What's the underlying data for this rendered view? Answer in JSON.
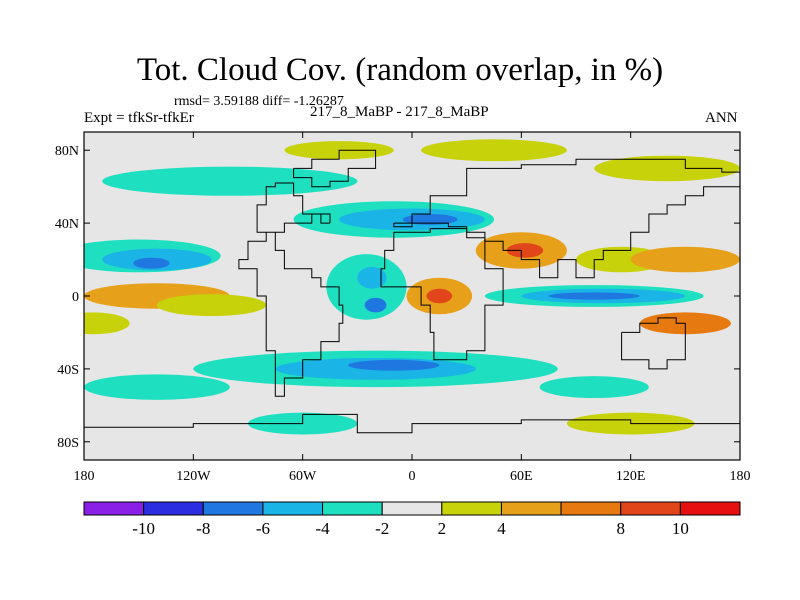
{
  "chart_data": {
    "type": "heatmap",
    "title": "Tot. Cloud Cov. (random overlap, in %)",
    "stats": {
      "label": "rmsd= 3.59188 diff= -1.26287"
    },
    "left_label": "Expt = tfkSr-tfkEr",
    "center_label": "217_8_MaBP - 217_8_MaBP",
    "right_label": "ANN",
    "x_axis": {
      "range": [
        -180,
        180
      ],
      "tick_values": [
        -180,
        -120,
        -60,
        0,
        60,
        120,
        180
      ],
      "tick_labels": [
        "180",
        "120W",
        "60W",
        "0",
        "60E",
        "120E",
        "180"
      ]
    },
    "y_axis": {
      "range": [
        -90,
        90
      ],
      "tick_values": [
        80,
        40,
        0,
        -40,
        -80
      ],
      "tick_labels": [
        "80N",
        "40N",
        "0",
        "40S",
        "80S"
      ]
    },
    "colorbar": {
      "levels": [
        -12,
        -10,
        -8,
        -6,
        -4,
        -2,
        2,
        4,
        6,
        8,
        10,
        12
      ],
      "labels": [
        {
          "value": -10,
          "text": "-10"
        },
        {
          "value": -8,
          "text": "-8"
        },
        {
          "value": -6,
          "text": "-6"
        },
        {
          "value": -4,
          "text": "-4"
        },
        {
          "value": -2,
          "text": "-2"
        },
        {
          "value": 2,
          "text": "2"
        },
        {
          "value": 4,
          "text": "4"
        },
        {
          "value": 8,
          "text": "8"
        },
        {
          "value": 10,
          "text": "10"
        }
      ],
      "colors": [
        "#8a1fe6",
        "#2a2de0",
        "#1f78e0",
        "#1ab4e6",
        "#1ee0c0",
        "#e6e6e6",
        "#c8d20a",
        "#e6a01a",
        "#e67a10",
        "#e0461a",
        "#e61010"
      ]
    },
    "features": [
      {
        "name": "nh-high-lat-teal-band",
        "lon": -100,
        "lat": 63,
        "rlon": 70,
        "rlat": 8,
        "value": -3
      },
      {
        "name": "arctic-yellow-1",
        "lon": -40,
        "lat": 80,
        "rlon": 30,
        "rlat": 5,
        "value": 3
      },
      {
        "name": "arctic-yellow-2",
        "lon": 45,
        "lat": 80,
        "rlon": 40,
        "rlat": 6,
        "value": 3
      },
      {
        "name": "arctic-yellow-3",
        "lon": 140,
        "lat": 70,
        "rlon": 40,
        "rlat": 7,
        "value": 3
      },
      {
        "name": "north-pacific-teal",
        "lon": -150,
        "lat": 22,
        "rlon": 45,
        "rlat": 9,
        "value": -3
      },
      {
        "name": "north-pacific-blue",
        "lon": -140,
        "lat": 20,
        "rlon": 30,
        "rlat": 6,
        "value": -5
      },
      {
        "name": "north-pacific-core",
        "lon": -143,
        "lat": 18,
        "rlon": 10,
        "rlat": 3,
        "value": -7
      },
      {
        "name": "north-atlantic-teal",
        "lon": -10,
        "lat": 42,
        "rlon": 55,
        "rlat": 10,
        "value": -3
      },
      {
        "name": "north-atlantic-blue",
        "lon": 0,
        "lat": 42,
        "rlon": 40,
        "rlat": 6,
        "value": -5
      },
      {
        "name": "north-atlantic-core",
        "lon": 10,
        "lat": 42,
        "rlon": 15,
        "rlat": 3,
        "value": -7
      },
      {
        "name": "central-asia-orange",
        "lon": 60,
        "lat": 25,
        "rlon": 25,
        "rlat": 10,
        "value": 5
      },
      {
        "name": "central-asia-red",
        "lon": 62,
        "lat": 25,
        "rlon": 10,
        "rlat": 4,
        "value": 9
      },
      {
        "name": "east-asia-yellow",
        "lon": 115,
        "lat": 20,
        "rlon": 25,
        "rlat": 7,
        "value": 3
      },
      {
        "name": "west-pacific-orange",
        "lon": 150,
        "lat": 20,
        "rlon": 30,
        "rlat": 7,
        "value": 5
      },
      {
        "name": "tropical-atlantic-teal",
        "lon": -25,
        "lat": 5,
        "rlon": 22,
        "rlat": 18,
        "value": -3
      },
      {
        "name": "tropical-atlantic-blue",
        "lon": -22,
        "lat": 10,
        "rlon": 8,
        "rlat": 6,
        "value": -6
      },
      {
        "name": "tropical-atlantic-core",
        "lon": -20,
        "lat": -5,
        "rlon": 6,
        "rlat": 4,
        "value": -7
      },
      {
        "name": "east-pacific-orange",
        "lon": -140,
        "lat": 0,
        "rlon": 40,
        "rlat": 7,
        "value": 5
      },
      {
        "name": "east-pacific-yellow",
        "lon": -110,
        "lat": -5,
        "rlon": 30,
        "rlat": 6,
        "value": 3
      },
      {
        "name": "africa-orange",
        "lon": 15,
        "lat": 0,
        "rlon": 18,
        "rlat": 10,
        "value": 5
      },
      {
        "name": "africa-red",
        "lon": 15,
        "lat": 0,
        "rlon": 7,
        "rlat": 4,
        "value": 9
      },
      {
        "name": "indian-ocean-teal",
        "lon": 100,
        "lat": 0,
        "rlon": 60,
        "rlat": 6,
        "value": -3
      },
      {
        "name": "indian-ocean-blue",
        "lon": 105,
        "lat": 0,
        "rlon": 45,
        "rlat": 4,
        "value": -6
      },
      {
        "name": "indian-ocean-core",
        "lon": 100,
        "lat": 0,
        "rlon": 25,
        "rlat": 2,
        "value": -7
      },
      {
        "name": "south-pacific-orange",
        "lon": 150,
        "lat": -15,
        "rlon": 25,
        "rlat": 6,
        "value": 6
      },
      {
        "name": "south-pacific-yellow",
        "lon": -175,
        "lat": -15,
        "rlon": 20,
        "rlat": 6,
        "value": 3
      },
      {
        "name": "southern-ocean-teal",
        "lon": -20,
        "lat": -40,
        "rlon": 100,
        "rlat": 10,
        "value": -3
      },
      {
        "name": "southern-ocean-blue",
        "lon": -20,
        "lat": -40,
        "rlon": 55,
        "rlat": 6,
        "value": -5
      },
      {
        "name": "southern-ocean-core",
        "lon": -10,
        "lat": -38,
        "rlon": 25,
        "rlat": 3,
        "value": -7
      },
      {
        "name": "sh-pacific-teal",
        "lon": -140,
        "lat": -50,
        "rlon": 40,
        "rlat": 7,
        "value": -3
      },
      {
        "name": "sh-indian-teal",
        "lon": 100,
        "lat": -50,
        "rlon": 30,
        "rlat": 6,
        "value": -3
      },
      {
        "name": "antarctic-yellow",
        "lon": 120,
        "lat": -70,
        "rlon": 35,
        "rlat": 6,
        "value": 3
      },
      {
        "name": "antarctic-teal",
        "lon": -60,
        "lat": -70,
        "rlon": 30,
        "rlat": 6,
        "value": -3
      }
    ],
    "coastline": [
      [
        [
          -65,
          70
        ],
        [
          -55,
          75
        ],
        [
          -40,
          80
        ],
        [
          -20,
          80
        ],
        [
          -20,
          70
        ],
        [
          -35,
          63
        ],
        [
          -45,
          60
        ],
        [
          -55,
          65
        ],
        [
          -65,
          70
        ]
      ],
      [
        [
          -45,
          40
        ],
        [
          -50,
          45
        ],
        [
          -60,
          55
        ],
        [
          -65,
          62
        ],
        [
          -75,
          60
        ],
        [
          -80,
          50
        ],
        [
          -85,
          35
        ],
        [
          -75,
          25
        ],
        [
          -70,
          15
        ],
        [
          -55,
          10
        ],
        [
          -50,
          5
        ],
        [
          -40,
          -5
        ],
        [
          -38,
          -15
        ],
        [
          -40,
          -25
        ],
        [
          -50,
          -35
        ],
        [
          -60,
          -45
        ],
        [
          -70,
          -55
        ],
        [
          -75,
          -45
        ],
        [
          -75,
          -30
        ],
        [
          -80,
          -15
        ],
        [
          -80,
          0
        ],
        [
          -85,
          15
        ],
        [
          -95,
          20
        ],
        [
          -90,
          30
        ],
        [
          -80,
          35
        ],
        [
          -70,
          40
        ],
        [
          -55,
          45
        ],
        [
          -45,
          40
        ]
      ],
      [
        [
          -10,
          35
        ],
        [
          10,
          37
        ],
        [
          30,
          32
        ],
        [
          40,
          15
        ],
        [
          50,
          10
        ],
        [
          50,
          -5
        ],
        [
          40,
          -15
        ],
        [
          40,
          -30
        ],
        [
          30,
          -35
        ],
        [
          20,
          -35
        ],
        [
          12,
          -20
        ],
        [
          10,
          -5
        ],
        [
          5,
          5
        ],
        [
          -10,
          5
        ],
        [
          -17,
          15
        ],
        [
          -15,
          25
        ],
        [
          -10,
          35
        ]
      ],
      [
        [
          -10,
          40
        ],
        [
          0,
          45
        ],
        [
          10,
          55
        ],
        [
          30,
          70
        ],
        [
          60,
          72
        ],
        [
          90,
          75
        ],
        [
          120,
          75
        ],
        [
          150,
          70
        ],
        [
          170,
          68
        ],
        [
          180,
          68
        ],
        [
          180,
          60
        ],
        [
          160,
          55
        ],
        [
          150,
          50
        ],
        [
          140,
          45
        ],
        [
          130,
          35
        ],
        [
          120,
          25
        ],
        [
          105,
          20
        ],
        [
          100,
          10
        ],
        [
          90,
          20
        ],
        [
          80,
          10
        ],
        [
          70,
          20
        ],
        [
          60,
          25
        ],
        [
          50,
          30
        ],
        [
          40,
          35
        ],
        [
          30,
          38
        ],
        [
          20,
          40
        ],
        [
          10,
          40
        ],
        [
          0,
          38
        ],
        [
          -10,
          40
        ]
      ],
      [
        [
          115,
          -20
        ],
        [
          125,
          -15
        ],
        [
          135,
          -12
        ],
        [
          145,
          -15
        ],
        [
          150,
          -25
        ],
        [
          150,
          -35
        ],
        [
          140,
          -40
        ],
        [
          130,
          -35
        ],
        [
          115,
          -35
        ],
        [
          115,
          -20
        ]
      ],
      [
        [
          -180,
          -72
        ],
        [
          -120,
          -70
        ],
        [
          -60,
          -65
        ],
        [
          -30,
          -75
        ],
        [
          0,
          -70
        ],
        [
          60,
          -68
        ],
        [
          120,
          -70
        ],
        [
          180,
          -72
        ],
        [
          180,
          -90
        ],
        [
          -180,
          -90
        ],
        [
          -180,
          -72
        ]
      ]
    ]
  }
}
